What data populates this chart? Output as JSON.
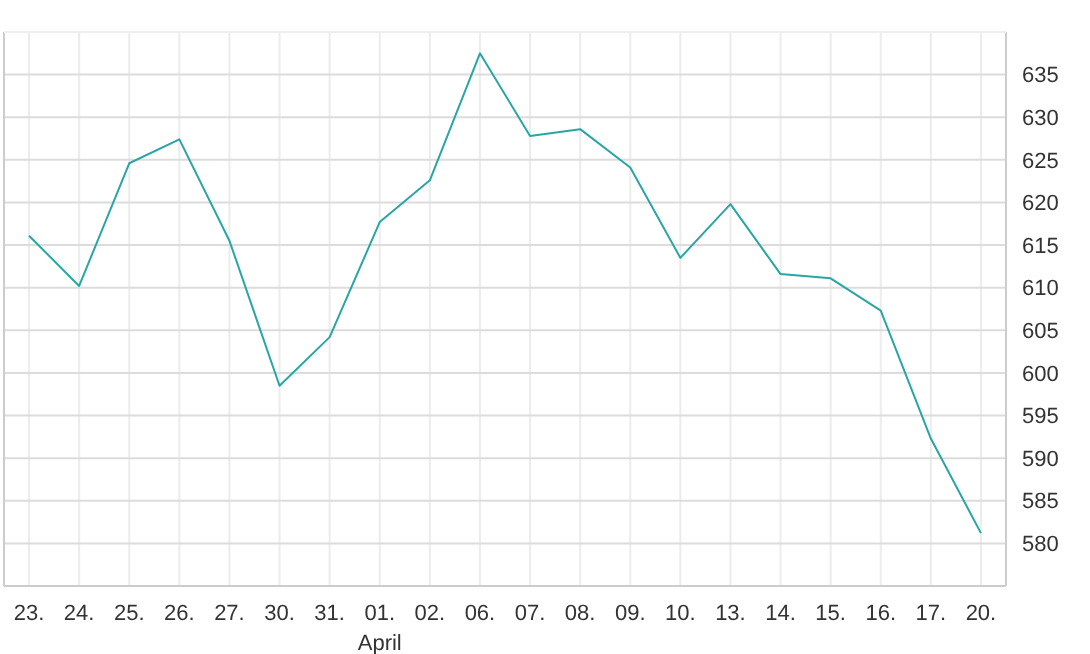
{
  "chart_data": {
    "type": "line",
    "categories": [
      "23.",
      "24.",
      "25.",
      "26.",
      "27.",
      "30.",
      "31.",
      "01.",
      "02.",
      "06.",
      "07.",
      "08.",
      "09.",
      "10.",
      "13.",
      "14.",
      "15.",
      "16.",
      "17.",
      "20."
    ],
    "series": [
      {
        "color": "#2aa5a5",
        "values": [
          616.1,
          610.2,
          624.6,
          627.4,
          615.5,
          598.5,
          604.2,
          617.7,
          622.6,
          637.5,
          627.8,
          628.6,
          624.1,
          613.5,
          619.8,
          611.6,
          611.1,
          607.3,
          592.3,
          581.2
        ]
      }
    ],
    "ylim": [
      575,
      640
    ],
    "yticks": [
      580,
      585,
      590,
      595,
      600,
      605,
      610,
      615,
      620,
      625,
      630,
      635
    ],
    "grid": true,
    "marker": "none",
    "line_style": "solid",
    "annotations": [
      "April"
    ]
  }
}
